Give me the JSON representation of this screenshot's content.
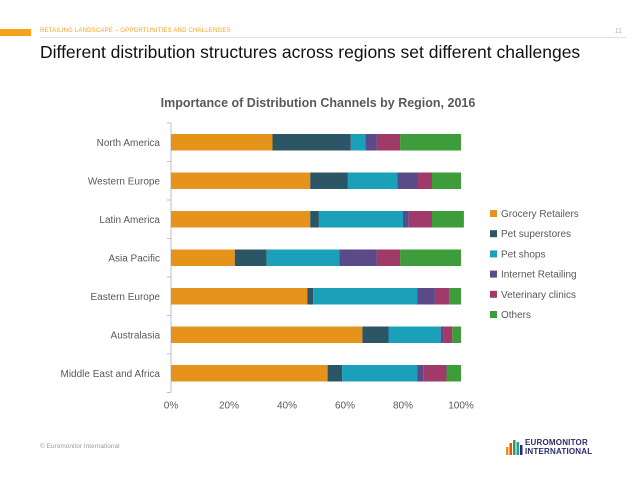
{
  "header": {
    "section_label": "RETAILING LANDSCAPE – OPPORTUNITIES AND CHALLENGES",
    "page_number": "11",
    "accent_color": "#f7a21b"
  },
  "slide_title": "Different distribution structures across regions set different challenges",
  "chart_data": {
    "type": "bar",
    "orientation": "horizontal",
    "stacked": true,
    "title": "Importance of Distribution Channels by Region, 2016",
    "categories": [
      "North America",
      "Western Europe",
      "Latin America",
      "Asia Pacific",
      "Eastern Europe",
      "Australasia",
      "Middle East and Africa"
    ],
    "series": [
      {
        "name": "Grocery Retailers",
        "color": "#e6931c",
        "values": [
          35,
          48,
          48,
          22,
          47,
          66,
          54
        ]
      },
      {
        "name": "Pet superstores",
        "color": "#2c5566",
        "values": [
          27,
          13,
          3,
          11,
          2,
          9,
          5
        ]
      },
      {
        "name": "Pet shops",
        "color": "#1aa0b8",
        "values": [
          5,
          17,
          29,
          25,
          36,
          18,
          26
        ]
      },
      {
        "name": "Internet Retailing",
        "color": "#5a4a87",
        "values": [
          4,
          7,
          2,
          13,
          6,
          1,
          2
        ]
      },
      {
        "name": "Veterinary clinics",
        "color": "#a03a6a",
        "values": [
          8,
          5,
          8,
          8,
          5,
          3,
          8
        ]
      },
      {
        "name": "Others",
        "color": "#3e9d3a",
        "values": [
          21,
          10,
          11,
          21,
          4,
          3,
          5
        ]
      }
    ],
    "xlim": [
      0,
      100
    ],
    "xticks": [
      "0%",
      "20%",
      "40%",
      "60%",
      "80%",
      "100%"
    ],
    "xlabel": "",
    "ylabel": "",
    "legend_position": "right"
  },
  "footer": {
    "copyright": "© Euromonitor International",
    "logo_line1": "EUROMONITOR",
    "logo_line2": "INTERNATIONAL"
  }
}
